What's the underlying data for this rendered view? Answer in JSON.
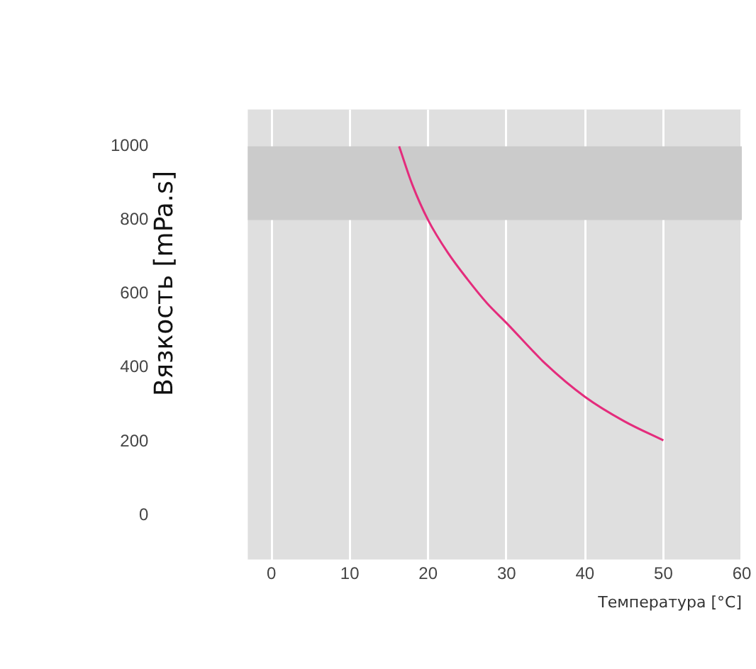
{
  "chart_data": {
    "type": "line",
    "xlabel": "Температура [°C]",
    "ylabel": "Вязкость [mPa.s]",
    "x": [
      16.3,
      18,
      20,
      22.5,
      25,
      27.5,
      30,
      35,
      40,
      45,
      50
    ],
    "series": [
      {
        "color": "#e42c7c",
        "values": [
          1000,
          895,
          800,
          712,
          640,
          575,
          521,
          410,
          321,
          255,
          203
        ]
      }
    ],
    "xlim": [
      -3,
      60
    ],
    "ylim": [
      -120,
      1100
    ],
    "xticks": [
      0,
      10,
      20,
      30,
      40,
      50,
      60
    ],
    "yticks": [
      0,
      200,
      400,
      600,
      800,
      1000
    ],
    "bands": [
      {
        "axis": "y",
        "from": 800,
        "to": 1000,
        "color": "#cbcbcb"
      }
    ],
    "grid": "x",
    "legend": false,
    "marker": "none",
    "line_style": "solid"
  }
}
